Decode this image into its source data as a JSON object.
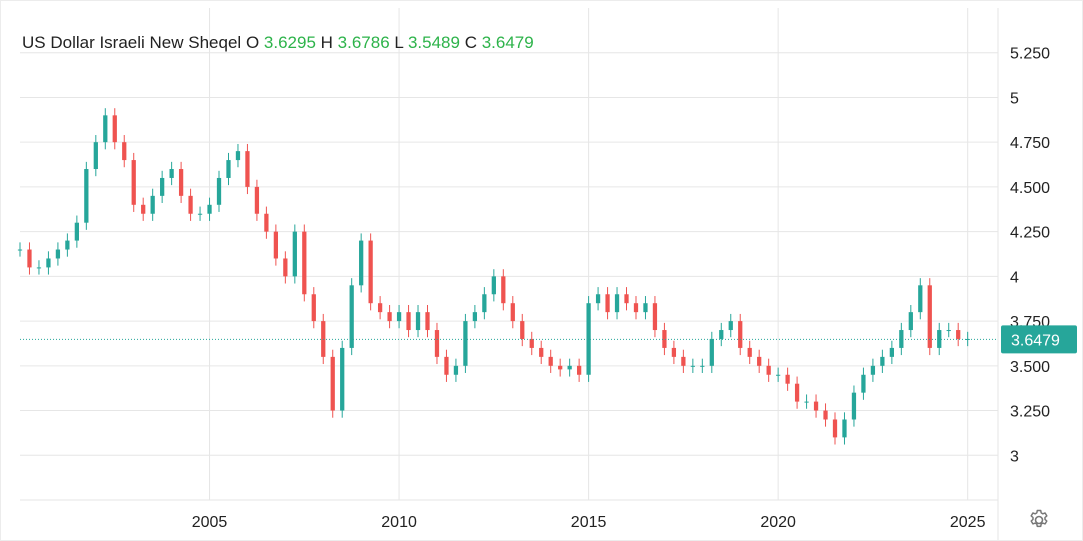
{
  "title": {
    "name": "US Dollar Israeli New Sheqel",
    "o_label": "O",
    "o_value": "3.6295",
    "h_label": "H",
    "h_value": "3.6786",
    "l_label": "L",
    "l_value": "3.5489",
    "c_label": "C",
    "c_value": "3.6479"
  },
  "colors": {
    "up": "#26a69a",
    "down": "#ef5350",
    "ohlc_values": "#2db34a",
    "last_price_badge": "#26a69a",
    "grid": "#e6e6e6"
  },
  "settings_icon": "gear-icon",
  "chart_data": {
    "type": "candlestick",
    "title": "US Dollar Israeli New Sheqel",
    "y_tick_labels": [
      "3",
      "3.250",
      "3.500",
      "3.750",
      "4",
      "4.250",
      "4.500",
      "4.750",
      "5",
      "5.250"
    ],
    "y_tick_values": [
      3.0,
      3.25,
      3.5,
      3.75,
      4.0,
      4.25,
      4.5,
      4.75,
      5.0,
      5.25
    ],
    "x_tick_labels": [
      "2005",
      "2010",
      "2015",
      "2020",
      "2025"
    ],
    "x_tick_values": [
      2005,
      2010,
      2015,
      2020,
      2025
    ],
    "ylim": [
      2.75,
      5.5
    ],
    "xlim": [
      2000.0,
      2025.8
    ],
    "last_price": 3.6479,
    "last_price_label": "3.6479",
    "grid": true,
    "series": [
      {
        "interval": "monthly",
        "x": [
          2000.0,
          2000.25,
          2000.5,
          2000.75,
          2001.0,
          2001.25,
          2001.5,
          2001.75,
          2002.0,
          2002.25,
          2002.5,
          2002.75,
          2003.0,
          2003.25,
          2003.5,
          2003.75,
          2004.0,
          2004.25,
          2004.5,
          2004.75,
          2005.0,
          2005.25,
          2005.5,
          2005.75,
          2006.0,
          2006.25,
          2006.5,
          2006.75,
          2007.0,
          2007.25,
          2007.5,
          2007.75,
          2008.0,
          2008.25,
          2008.5,
          2008.75,
          2009.0,
          2009.25,
          2009.5,
          2009.75,
          2010.0,
          2010.25,
          2010.5,
          2010.75,
          2011.0,
          2011.25,
          2011.5,
          2011.75,
          2012.0,
          2012.25,
          2012.5,
          2012.75,
          2013.0,
          2013.25,
          2013.5,
          2013.75,
          2014.0,
          2014.25,
          2014.5,
          2014.75,
          2015.0,
          2015.25,
          2015.5,
          2015.75,
          2016.0,
          2016.25,
          2016.5,
          2016.75,
          2017.0,
          2017.25,
          2017.5,
          2017.75,
          2018.0,
          2018.25,
          2018.5,
          2018.75,
          2019.0,
          2019.25,
          2019.5,
          2019.75,
          2020.0,
          2020.25,
          2020.5,
          2020.75,
          2021.0,
          2021.25,
          2021.5,
          2021.75,
          2022.0,
          2022.25,
          2022.5,
          2022.75,
          2023.0,
          2023.25,
          2023.5,
          2023.75,
          2024.0,
          2024.25,
          2024.5,
          2024.75,
          2025.0
        ],
        "close": [
          4.15,
          4.05,
          4.05,
          4.1,
          4.15,
          4.2,
          4.3,
          4.6,
          4.75,
          4.9,
          4.75,
          4.65,
          4.4,
          4.35,
          4.45,
          4.55,
          4.6,
          4.45,
          4.35,
          4.35,
          4.4,
          4.55,
          4.65,
          4.7,
          4.5,
          4.35,
          4.25,
          4.1,
          4.0,
          4.25,
          3.9,
          3.75,
          3.55,
          3.25,
          3.6,
          3.95,
          4.2,
          3.85,
          3.8,
          3.75,
          3.8,
          3.7,
          3.8,
          3.7,
          3.55,
          3.45,
          3.5,
          3.75,
          3.8,
          3.9,
          4.0,
          3.85,
          3.75,
          3.65,
          3.6,
          3.55,
          3.5,
          3.48,
          3.5,
          3.45,
          3.85,
          3.9,
          3.8,
          3.9,
          3.85,
          3.8,
          3.85,
          3.7,
          3.6,
          3.55,
          3.5,
          3.5,
          3.5,
          3.65,
          3.7,
          3.75,
          3.6,
          3.55,
          3.5,
          3.45,
          3.45,
          3.4,
          3.3,
          3.3,
          3.25,
          3.2,
          3.1,
          3.2,
          3.35,
          3.45,
          3.5,
          3.55,
          3.6,
          3.7,
          3.8,
          3.95,
          3.6,
          3.7,
          3.7,
          3.65,
          3.65
        ]
      }
    ]
  }
}
